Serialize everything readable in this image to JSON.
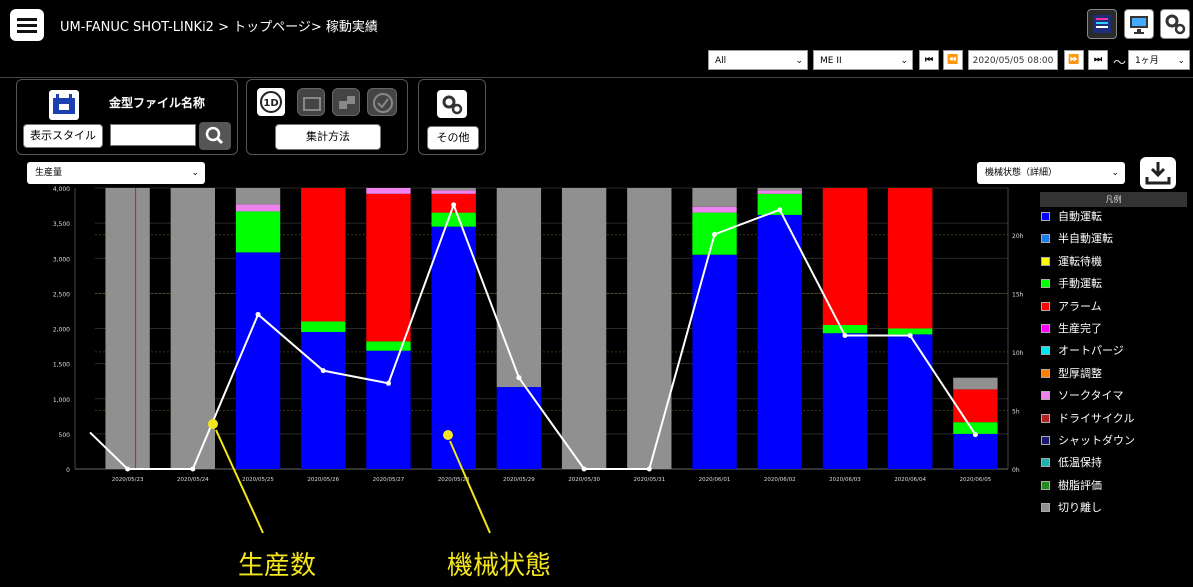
{
  "breadcrumb": "UM-FANUC SHOT-LINKi2 > トップページ> 稼動実績",
  "header_icons": [
    "list-view-icon",
    "monitor-icon",
    "settings-gear-icon"
  ],
  "toolbar": {
    "machine_filter": "All",
    "machine_select": "ME II",
    "start_datetime": "2020/05/05 08:00",
    "tilde": "～",
    "period": "1ヶ月"
  },
  "mold_panel": {
    "title": "金型ファイル名称",
    "style_button": "表示スタイル",
    "search_value": ""
  },
  "agg_panel": {
    "button": "集計方法"
  },
  "other_panel": {
    "button": "その他"
  },
  "left_select": "生産量",
  "right_select": "機械状態（詳細）",
  "legend": {
    "title": "凡例",
    "items": [
      {
        "label": "自動運転",
        "color": "#0000ff"
      },
      {
        "label": "半自動運転",
        "color": "#1e7be8"
      },
      {
        "label": "運転待機",
        "color": "#ffff00"
      },
      {
        "label": "手動運転",
        "color": "#00ff00"
      },
      {
        "label": "アラーム",
        "color": "#ff0000"
      },
      {
        "label": "生産完了",
        "color": "#ff00ff"
      },
      {
        "label": "オートパージ",
        "color": "#00e5ee"
      },
      {
        "label": "型厚調整",
        "color": "#ff7f00"
      },
      {
        "label": "ソークタイマ",
        "color": "#ee82ee"
      },
      {
        "label": "ドライサイクル",
        "color": "#b22222"
      },
      {
        "label": "シャットダウン",
        "color": "#191970"
      },
      {
        "label": "低温保持",
        "color": "#20b2aa"
      },
      {
        "label": "樹脂評価",
        "color": "#228b22"
      },
      {
        "label": "切り離し",
        "color": "#909090"
      }
    ]
  },
  "annotations": {
    "production": "生産数",
    "machine_state": "機械状態"
  },
  "chart_data": {
    "type": "bar",
    "categories": [
      "2020/05/23",
      "2020/05/24",
      "2020/05/25",
      "2020/05/26",
      "2020/05/27",
      "2020/05/28",
      "2020/05/29",
      "2020/05/30",
      "2020/05/31",
      "2020/06/01",
      "2020/06/02",
      "2020/06/03",
      "2020/06/04",
      "2020/06/05"
    ],
    "left_axis": {
      "ticks": [
        "0",
        "500",
        "1,000",
        "1,500",
        "2,000",
        "2,500",
        "3,000",
        "3,500",
        "4,000"
      ],
      "ylim": [
        0,
        4000
      ]
    },
    "right_axis": {
      "ticks": [
        "0h",
        "5h",
        "10h",
        "15h",
        "20h"
      ],
      "ylim": [
        0,
        24
      ]
    },
    "stacked_series": [
      {
        "name": "自動運転",
        "color": "#0000ff",
        "values": [
          0,
          0,
          18.5,
          11.7,
          10.1,
          20.7,
          7.0,
          0,
          0,
          18.3,
          21.7,
          11.6,
          11.5,
          3.0
        ]
      },
      {
        "name": "手動運転",
        "color": "#00ff00",
        "values": [
          0,
          0,
          3.5,
          0.9,
          0.8,
          1.2,
          0,
          0,
          0,
          3.6,
          1.8,
          0.7,
          0.5,
          1.0
        ]
      },
      {
        "name": "アラーム",
        "color": "#ff0000",
        "values": [
          0,
          0,
          0,
          11.4,
          12.6,
          1.6,
          0,
          0,
          0,
          0,
          0,
          11.7,
          12.0,
          2.8
        ]
      },
      {
        "name": "ソークタイマ",
        "color": "#ee82ee",
        "values": [
          0,
          0,
          0.6,
          0,
          0.5,
          0.3,
          0,
          0,
          0,
          0.5,
          0.3,
          0,
          0,
          0
        ]
      },
      {
        "name": "切り離し",
        "color": "#909090",
        "values": [
          24,
          24,
          1.4,
          0,
          0,
          0.2,
          17.0,
          24,
          24,
          1.6,
          0.2,
          0,
          0,
          1.0
        ]
      }
    ],
    "line_series": {
      "name": "生産数",
      "values": [
        0,
        0,
        2200,
        1400,
        1220,
        3760,
        1300,
        0,
        0,
        3340,
        3690,
        1900,
        1900,
        490
      ]
    }
  }
}
